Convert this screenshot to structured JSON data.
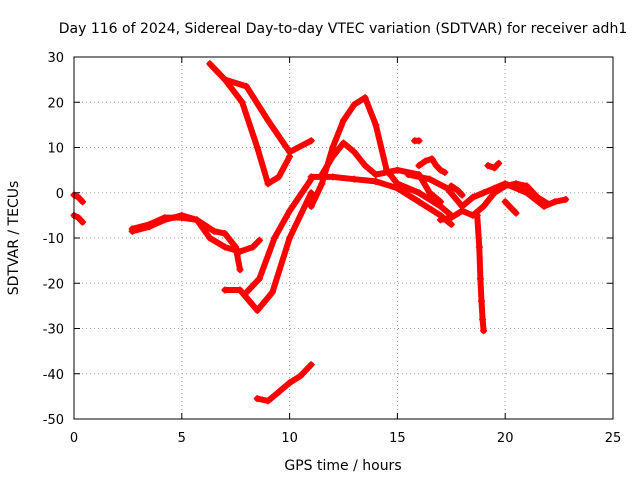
{
  "chart_data": {
    "type": "scatter",
    "title": "Day 116 of 2024, Sidereal Day-to-day VTEC variation (SDTVAR) for receiver adh1",
    "xlabel": "GPS time / hours",
    "ylabel": "SDTVAR / TECUs",
    "xlim": [
      0,
      25
    ],
    "ylim": [
      -50,
      30
    ],
    "xticks": [
      0,
      5,
      10,
      15,
      20,
      25
    ],
    "yticks": [
      -50,
      -40,
      -30,
      -20,
      -10,
      0,
      10,
      20,
      30
    ],
    "grid": true,
    "color": "#ff0000",
    "marker": "+",
    "series": [
      {
        "name": "s1",
        "x": [
          0.0,
          0.2,
          0.4
        ],
        "y": [
          -0.5,
          -1.0,
          -2.0
        ]
      },
      {
        "name": "s2",
        "x": [
          0.0,
          0.2,
          0.4
        ],
        "y": [
          -5.0,
          -5.5,
          -6.5
        ]
      },
      {
        "name": "s3",
        "x": [
          2.7,
          3.5,
          4.2,
          5.0,
          5.7,
          6.5,
          7.0,
          7.5,
          7.7
        ],
        "y": [
          -8.5,
          -7.5,
          -6.0,
          -5.0,
          -6.0,
          -8.5,
          -9.0,
          -12.0,
          -17.0
        ]
      },
      {
        "name": "s4",
        "x": [
          2.7,
          3.5,
          4.2,
          5.0,
          5.7,
          6.3,
          7.0,
          7.7,
          8.3,
          8.6
        ],
        "y": [
          -8.0,
          -7.0,
          -5.5,
          -5.5,
          -6.0,
          -10.0,
          -12.0,
          -13.0,
          -12.0,
          -10.5
        ]
      },
      {
        "name": "s5",
        "x": [
          6.3,
          7.0,
          7.8,
          8.5,
          9.0,
          9.5,
          10.0
        ],
        "y": [
          28.5,
          25.0,
          20.0,
          10.0,
          2.0,
          3.5,
          8.0
        ]
      },
      {
        "name": "s6",
        "x": [
          7.0,
          8.0,
          9.0,
          10.0,
          11.0
        ],
        "y": [
          25.0,
          23.5,
          16.0,
          9.0,
          11.5
        ]
      },
      {
        "name": "s7",
        "x": [
          7.0,
          7.7,
          8.5,
          9.2,
          10.0,
          11.0
        ],
        "y": [
          -21.5,
          -21.5,
          -26.0,
          -22.0,
          -10.0,
          0.0
        ]
      },
      {
        "name": "s8",
        "x": [
          8.0,
          8.6,
          9.3,
          10.0,
          11.0
        ],
        "y": [
          -22.0,
          -19.0,
          -10.0,
          -4.0,
          3.0
        ]
      },
      {
        "name": "s9",
        "x": [
          8.5,
          9.0,
          9.5,
          10.0,
          10.5,
          11.0
        ],
        "y": [
          -45.5,
          -46.0,
          -44.0,
          -42.0,
          -40.5,
          -38.0
        ]
      },
      {
        "name": "s10",
        "x": [
          11.0,
          11.5,
          12.0,
          12.5,
          13.0,
          13.5,
          14.0,
          14.5,
          15.0,
          16.0,
          17.0,
          17.5
        ],
        "y": [
          -3.0,
          2.0,
          10.0,
          16.0,
          19.5,
          21.0,
          15.0,
          5.0,
          2.0,
          0.0,
          -3.0,
          -5.0
        ]
      },
      {
        "name": "s11",
        "x": [
          11.5,
          12.0,
          12.5,
          13.0,
          13.5,
          14.0,
          15.0,
          16.0,
          16.5,
          17.0
        ],
        "y": [
          4.0,
          8.0,
          11.0,
          9.0,
          6.0,
          4.0,
          5.0,
          4.0,
          0.0,
          -2.0
        ]
      },
      {
        "name": "s12",
        "x": [
          11.0,
          12.0,
          13.0,
          14.0,
          15.0,
          16.0,
          17.0,
          17.5
        ],
        "y": [
          3.5,
          3.5,
          3.0,
          2.5,
          1.0,
          -2.0,
          -5.0,
          -7.0
        ]
      },
      {
        "name": "s13",
        "x": [
          15.5,
          16.5,
          17.3,
          18.0,
          18.5,
          19.0,
          19.5,
          20.0,
          21.0,
          21.8,
          22.3,
          22.8
        ],
        "y": [
          4.0,
          3.0,
          1.0,
          -3.0,
          -1.0,
          0.0,
          1.0,
          2.0,
          0.0,
          -3.0,
          -2.0,
          -1.5
        ]
      },
      {
        "name": "s14",
        "x": [
          17.0,
          17.5,
          18.0,
          18.5,
          19.0,
          19.5,
          20.0,
          20.5,
          21.0,
          21.5,
          22.0
        ],
        "y": [
          -6.0,
          -5.5,
          -4.0,
          -5.0,
          -3.0,
          0.0,
          1.5,
          2.0,
          1.5,
          -1.0,
          -2.5
        ]
      },
      {
        "name": "s15",
        "x": [
          18.7,
          18.8,
          18.85,
          18.9,
          18.95,
          19.0
        ],
        "y": [
          -5.0,
          -12.0,
          -19.0,
          -24.0,
          -28.0,
          -30.5
        ]
      },
      {
        "name": "s16",
        "x": [
          15.8,
          16.0
        ],
        "y": [
          11.5,
          11.5
        ]
      },
      {
        "name": "s17",
        "x": [
          16.0,
          16.3,
          16.6,
          16.8,
          17.0,
          17.2
        ],
        "y": [
          6.0,
          7.0,
          7.5,
          6.0,
          5.0,
          4.5
        ]
      },
      {
        "name": "s18",
        "x": [
          20.0,
          20.3,
          20.5
        ],
        "y": [
          -2.0,
          -3.5,
          -4.5
        ]
      },
      {
        "name": "s19",
        "x": [
          17.5,
          17.8,
          18.0
        ],
        "y": [
          1.5,
          0.5,
          -0.5
        ]
      },
      {
        "name": "s20",
        "x": [
          19.2,
          19.5,
          19.7
        ],
        "y": [
          6.0,
          5.5,
          6.5
        ]
      }
    ]
  }
}
